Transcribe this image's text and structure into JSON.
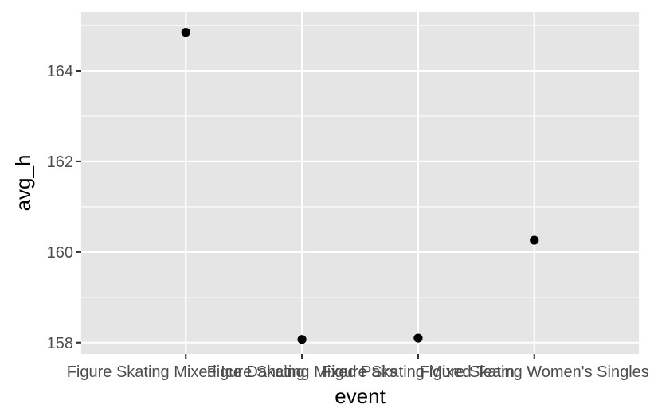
{
  "chart_data": {
    "type": "scatter",
    "xlabel": "event",
    "ylabel": "avg_h",
    "categories": [
      "Figure Skating Mixed Ice Dancing",
      "Figure Skating Mixed Pairs",
      "Figure Skating Mixed Team",
      "Figure Skating Women's Singles"
    ],
    "values": [
      164.85,
      158.07,
      158.1,
      160.26
    ],
    "ylim": [
      157.75,
      165.3
    ],
    "yticks": [
      158,
      160,
      162,
      164
    ],
    "grid": true,
    "legend": "none",
    "colors": {
      "panel": "#e5e5e5",
      "grid": "#ffffff",
      "point": "#000000",
      "tick_label": "#4d4d4d"
    }
  }
}
